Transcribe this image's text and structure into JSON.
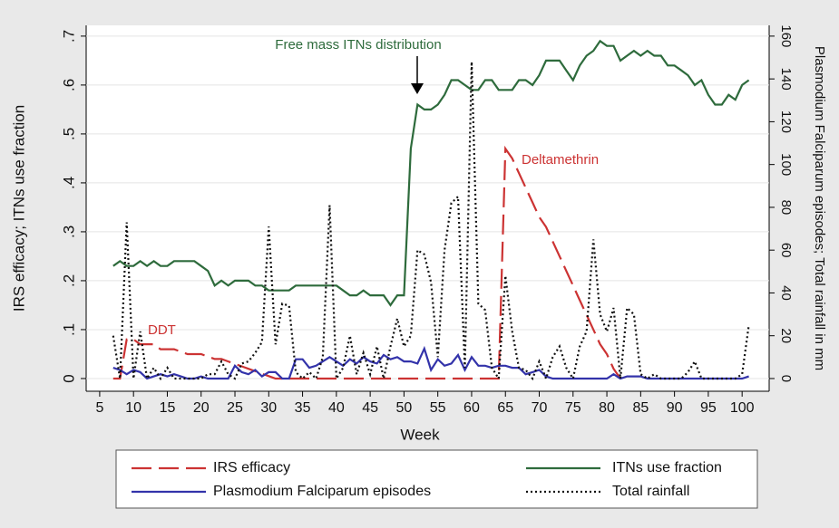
{
  "chart_data": {
    "type": "line",
    "x_label": "Week",
    "y_label": "IRS efficacy; ITNs use fraction",
    "y2_label": "Plasmodium Falciparum episodes; Total rainfall in mm",
    "annotations": [
      "Free mass ITNs distribution",
      "DDT",
      "Deltamethrin"
    ],
    "xlim": [
      3,
      104
    ],
    "xticks": [
      5,
      10,
      15,
      20,
      25,
      30,
      35,
      40,
      45,
      50,
      55,
      60,
      65,
      70,
      75,
      80,
      85,
      90,
      95,
      100
    ],
    "ylim": [
      -0.026,
      0.722
    ],
    "yticks": [
      0,
      {
        "value": 0.1,
        "label": ".1"
      },
      {
        "value": 0.2,
        "label": ".2"
      },
      {
        "value": 0.3,
        "label": ".3"
      },
      {
        "value": 0.4,
        "label": ".4"
      },
      {
        "value": 0.5,
        "label": ".5"
      },
      {
        "value": 0.6,
        "label": ".6"
      },
      {
        "value": 0.7,
        "label": ".7"
      }
    ],
    "y2lim": [
      -5.94,
      165.03
    ],
    "y2ticks": [
      0,
      20,
      40,
      60,
      80,
      100,
      120,
      140,
      160
    ],
    "grid": true,
    "x": [
      7,
      8,
      9,
      10,
      11,
      12,
      13,
      14,
      15,
      16,
      17,
      18,
      19,
      20,
      21,
      22,
      23,
      24,
      25,
      26,
      27,
      28,
      29,
      30,
      31,
      32,
      33,
      34,
      35,
      36,
      37,
      38,
      39,
      40,
      41,
      42,
      43,
      44,
      45,
      46,
      47,
      48,
      49,
      50,
      51,
      52,
      53,
      54,
      55,
      56,
      57,
      58,
      59,
      60,
      61,
      62,
      63,
      64,
      65,
      66,
      67,
      68,
      69,
      70,
      71,
      72,
      73,
      74,
      75,
      76,
      77,
      78,
      79,
      80,
      81,
      82,
      83,
      84,
      85,
      86,
      87,
      88,
      89,
      90,
      91,
      92,
      93,
      94,
      95,
      96,
      97,
      98,
      99,
      100,
      101
    ],
    "series": [
      {
        "name": "IRS efficacy",
        "color": "#cc3333",
        "dash": "dashed",
        "axis": "y",
        "values": [
          0,
          0,
          0.08,
          0.08,
          0.07,
          0.07,
          0.07,
          0.06,
          0.06,
          0.06,
          0.055,
          0.05,
          0.05,
          0.05,
          0.045,
          0.04,
          0.04,
          0.035,
          0.03,
          0.025,
          0.02,
          0.015,
          0.01,
          0.005,
          0,
          0,
          0,
          0,
          0,
          0,
          0,
          0,
          0,
          0,
          0,
          0,
          0,
          0,
          0,
          0,
          0,
          0,
          0,
          0,
          0,
          0,
          0,
          0,
          0,
          0,
          0,
          0,
          0,
          0,
          0,
          0,
          0,
          0,
          0.47,
          0.45,
          0.42,
          0.39,
          0.36,
          0.33,
          0.31,
          0.28,
          0.25,
          0.22,
          0.19,
          0.16,
          0.13,
          0.1,
          0.07,
          0.05,
          0.02,
          0,
          null,
          null,
          null,
          null,
          null,
          null,
          null,
          null,
          null,
          null,
          null,
          null,
          null,
          null,
          null,
          null,
          null,
          null,
          null
        ]
      },
      {
        "name": "ITNs use fraction",
        "color": "#2e6b3c",
        "dash": "solid",
        "axis": "y",
        "values": [
          0.23,
          0.24,
          0.23,
          0.23,
          0.24,
          0.23,
          0.24,
          0.23,
          0.23,
          0.24,
          0.24,
          0.24,
          0.24,
          0.23,
          0.22,
          0.19,
          0.2,
          0.19,
          0.2,
          0.2,
          0.2,
          0.19,
          0.19,
          0.18,
          0.18,
          0.18,
          0.18,
          0.19,
          0.19,
          0.19,
          0.19,
          0.19,
          0.19,
          0.19,
          0.18,
          0.17,
          0.17,
          0.18,
          0.17,
          0.17,
          0.17,
          0.15,
          0.17,
          0.17,
          0.47,
          0.56,
          0.55,
          0.55,
          0.56,
          0.58,
          0.61,
          0.61,
          0.6,
          0.59,
          0.59,
          0.61,
          0.61,
          0.59,
          0.59,
          0.59,
          0.61,
          0.61,
          0.6,
          0.62,
          0.65,
          0.65,
          0.65,
          0.63,
          0.61,
          0.64,
          0.66,
          0.67,
          0.69,
          0.68,
          0.68,
          0.65,
          0.66,
          0.67,
          0.66,
          0.67,
          0.66,
          0.66,
          0.64,
          0.64,
          0.63,
          0.62,
          0.6,
          0.61,
          0.58,
          0.56,
          0.56,
          0.58,
          0.57,
          0.6,
          0.61
        ]
      },
      {
        "name": "Plasmodium Falciparum episodes",
        "color": "#3333aa",
        "dash": "solid",
        "axis": "y2",
        "values": [
          5,
          4,
          2,
          4,
          3,
          0,
          1,
          2,
          1,
          2,
          1,
          0,
          0,
          1,
          0,
          0,
          0,
          0,
          6,
          3,
          2,
          4,
          1,
          3,
          3,
          0,
          0,
          9,
          9,
          5,
          6,
          8,
          10,
          8,
          6,
          9,
          7,
          10,
          8,
          7,
          11,
          9,
          10,
          8,
          8,
          7,
          14,
          4,
          9,
          6,
          7,
          11,
          4,
          10,
          6,
          6,
          5,
          6,
          6,
          5,
          5,
          2,
          3,
          4,
          1,
          0,
          0,
          0,
          0,
          0,
          0,
          0,
          0,
          0,
          2,
          0,
          1,
          1,
          1,
          0,
          0,
          0,
          0,
          0,
          0,
          0,
          0,
          0,
          0,
          0,
          0,
          0,
          0,
          0,
          1
        ]
      },
      {
        "name": "Total rainfall",
        "color": "#111111",
        "dash": "dotted",
        "axis": "y2",
        "values": [
          20,
          0,
          73,
          0,
          22,
          0,
          5,
          0,
          5,
          0,
          0,
          0,
          0,
          0,
          2,
          2,
          8,
          2,
          0,
          7,
          8,
          12,
          17,
          71,
          16,
          35,
          34,
          3,
          0,
          3,
          0,
          10,
          81,
          0,
          5,
          20,
          2,
          12,
          2,
          15,
          0,
          15,
          28,
          15,
          20,
          60,
          58,
          45,
          10,
          60,
          82,
          85,
          5,
          148,
          35,
          32,
          5,
          0,
          48,
          22,
          5,
          4,
          0,
          8,
          0,
          10,
          15,
          5,
          0,
          15,
          22,
          65,
          30,
          22,
          33,
          0,
          33,
          30,
          2,
          0,
          2,
          0,
          0,
          0,
          0,
          3,
          8,
          0,
          0,
          0,
          0,
          0,
          0,
          2,
          25
        ]
      }
    ]
  }
}
